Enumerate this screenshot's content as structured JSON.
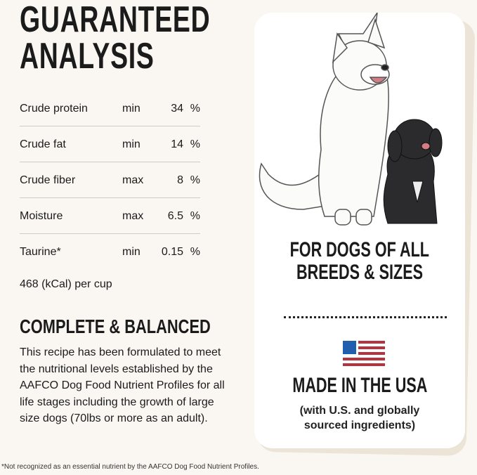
{
  "title": [
    "GUARANTEED",
    "ANALYSIS"
  ],
  "analysis": [
    {
      "nutrient": "Crude protein",
      "qualifier": "min",
      "value": "34",
      "unit": "%"
    },
    {
      "nutrient": "Crude fat",
      "qualifier": "min",
      "value": "14",
      "unit": "%"
    },
    {
      "nutrient": "Crude fiber",
      "qualifier": "max",
      "value": "8",
      "unit": "%"
    },
    {
      "nutrient": "Moisture",
      "qualifier": "max",
      "value": "6.5",
      "unit": "%"
    },
    {
      "nutrient": "Taurine*",
      "qualifier": "min",
      "value": "0.15",
      "unit": "%"
    }
  ],
  "calories": "468 (kCal) per cup",
  "complete": {
    "heading": "COMPLETE & BALANCED",
    "text": "This recipe has been formulated to meet the nutritional levels established by the AAFCO Dog Food Nutrient Profiles for all life stages including the growth of large size dogs (70lbs or more as an adult)."
  },
  "footnote": "*Not recognized as an essential nutrient by the AAFCO Dog Food Nutrient Profiles.",
  "card": {
    "breeds": [
      "FOR DOGS OF ALL",
      "BREEDS & SIZES"
    ],
    "made": "MADE IN THE USA",
    "sourced": [
      "(with U.S. and globally",
      "sourced ingredients)"
    ],
    "flag_icon": "us-flag-icon",
    "colors": {
      "flag_blue": "#1f5fae",
      "flag_red": "#b5323f"
    }
  }
}
